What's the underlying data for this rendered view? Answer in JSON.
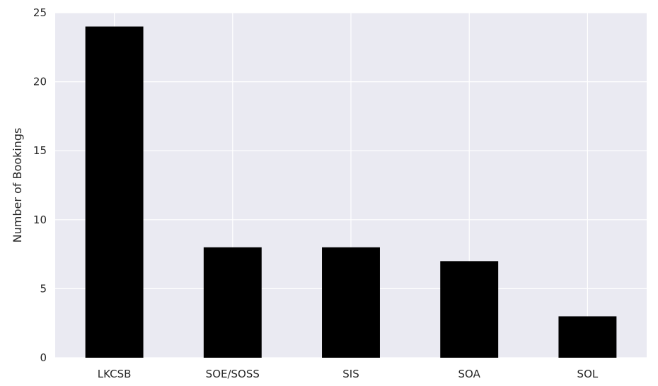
{
  "chart_data": {
    "type": "bar",
    "categories": [
      "LKCSB",
      "SOE/SOSS",
      "SIS",
      "SOA",
      "SOL"
    ],
    "values": [
      24,
      8,
      8,
      7,
      3
    ],
    "title": "",
    "xlabel": "",
    "ylabel": "Number of Bookings",
    "ylim": [
      0,
      25
    ],
    "yticks": [
      0,
      5,
      10,
      15,
      20,
      25
    ],
    "grid": true,
    "bar_color": "#000000",
    "background_color": "#eaeaf2",
    "grid_color": "#ffffff"
  }
}
